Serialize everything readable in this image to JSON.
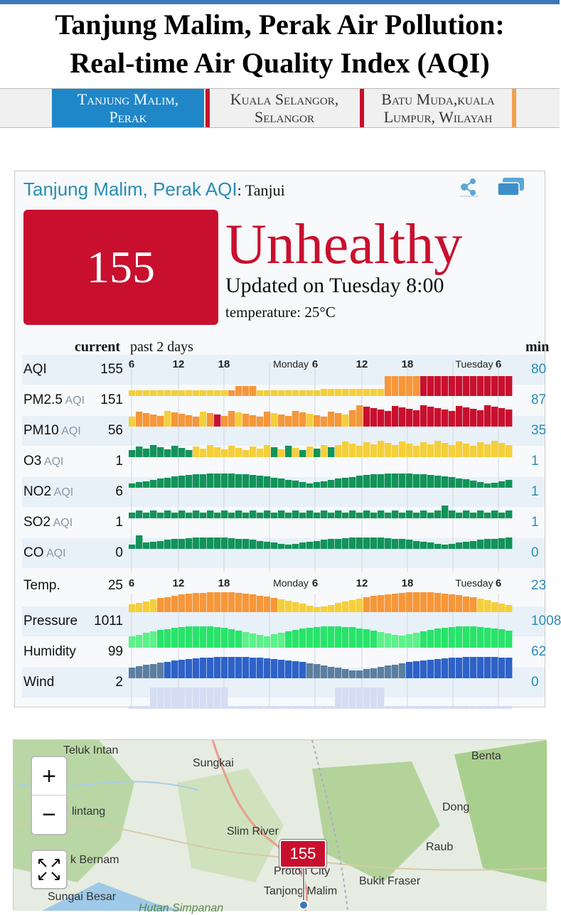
{
  "header": {
    "title_bold": "Tanjung Malim, Perak",
    "title_rest": " Air Pollution:",
    "title_line2": "Real-time Air Quality Index (AQI)"
  },
  "tabs": [
    {
      "line1": "Tanjung Malim,",
      "line2": "Perak",
      "active": true,
      "accent": "#1f86c8"
    },
    {
      "line1": "Kuala Selangor,",
      "line2": "Selangor",
      "active": false,
      "accent": "#c8102e"
    },
    {
      "line1": "Batu Muda,kuala",
      "line2": "Lumpur, Wilayah",
      "active": false,
      "accent": "#f0a050"
    }
  ],
  "widget": {
    "heading": "Tanjung Malim, Perak AQI",
    "heading_sub": ": Tanjui",
    "aqi": "155",
    "status": "Unhealthy",
    "updated": "Updated on Tuesday 8:00",
    "temperature": "temperature: 25°C",
    "col_current": "current",
    "col_past": "past 2 days",
    "col_min": "min",
    "colors": {
      "unhealthy": "#c8102e",
      "accent": "#2a8cb5"
    }
  },
  "rows": [
    {
      "name": "AQI",
      "unit": "",
      "value": "155",
      "min": "80"
    },
    {
      "name": "PM2.5",
      "unit": " AQI",
      "value": "151",
      "min": "87"
    },
    {
      "name": "PM10",
      "unit": " AQI",
      "value": "56",
      "min": "35"
    },
    {
      "name": "O3",
      "unit": " AQI",
      "value": "1",
      "min": "1"
    },
    {
      "name": "NO2",
      "unit": " AQI",
      "value": "6",
      "min": "1"
    },
    {
      "name": "SO2",
      "unit": " AQI",
      "value": "1",
      "min": "1"
    },
    {
      "name": "CO",
      "unit": " AQI",
      "value": "0",
      "min": "0"
    },
    {
      "name": "Temp.",
      "unit": "",
      "value": "25",
      "min": "23"
    },
    {
      "name": "Pressure",
      "unit": "",
      "value": "1011",
      "min": "1008"
    },
    {
      "name": "Humidity",
      "unit": "",
      "value": "99",
      "min": "62"
    },
    {
      "name": "Wind",
      "unit": "",
      "value": "2",
      "min": "0"
    }
  ],
  "timeline": {
    "ticks": [
      "6",
      "12",
      "18",
      "Monday",
      "6",
      "12",
      "18",
      "Tuesday",
      "6"
    ]
  },
  "map": {
    "labels": [
      "Teluk Intan",
      "Sungkai",
      "Benta",
      "Dong",
      "Slim River",
      "Raub",
      "Bukit Fraser",
      "Sungai Besar",
      "Proton City",
      "Tanjong Malim",
      "lintang",
      "k Bernam",
      "Hutan Simpanan"
    ],
    "zoom_in": "+",
    "zoom_out": "−",
    "marker": "155"
  }
}
